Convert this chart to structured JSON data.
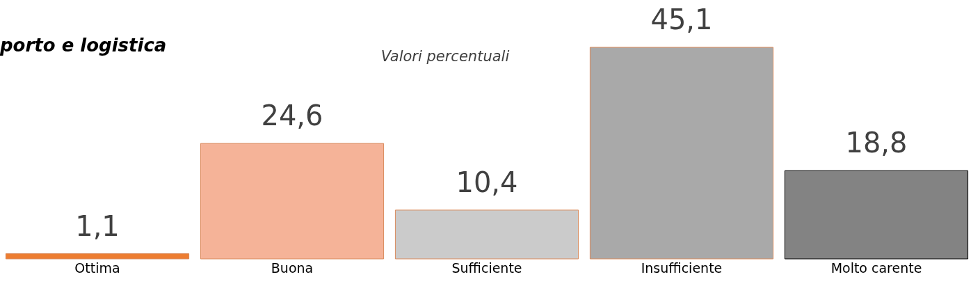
{
  "chart_data": {
    "type": "bar",
    "title": "porto e logistica",
    "subtitle": "Valori percentuali",
    "categories": [
      "Ottima",
      "Buona",
      "Sufficiente",
      "Insufficiente",
      "Molto carente"
    ],
    "values": [
      1.1,
      24.6,
      10.4,
      45.1,
      18.8
    ],
    "colors": [
      "#ed7d31",
      "#f5b398",
      "#cbcbcb",
      "#a9a9a9",
      "#838383"
    ],
    "value_labels": [
      "1,1",
      "24,6",
      "10,4",
      "45,1",
      "18,8"
    ],
    "grid": false
  }
}
